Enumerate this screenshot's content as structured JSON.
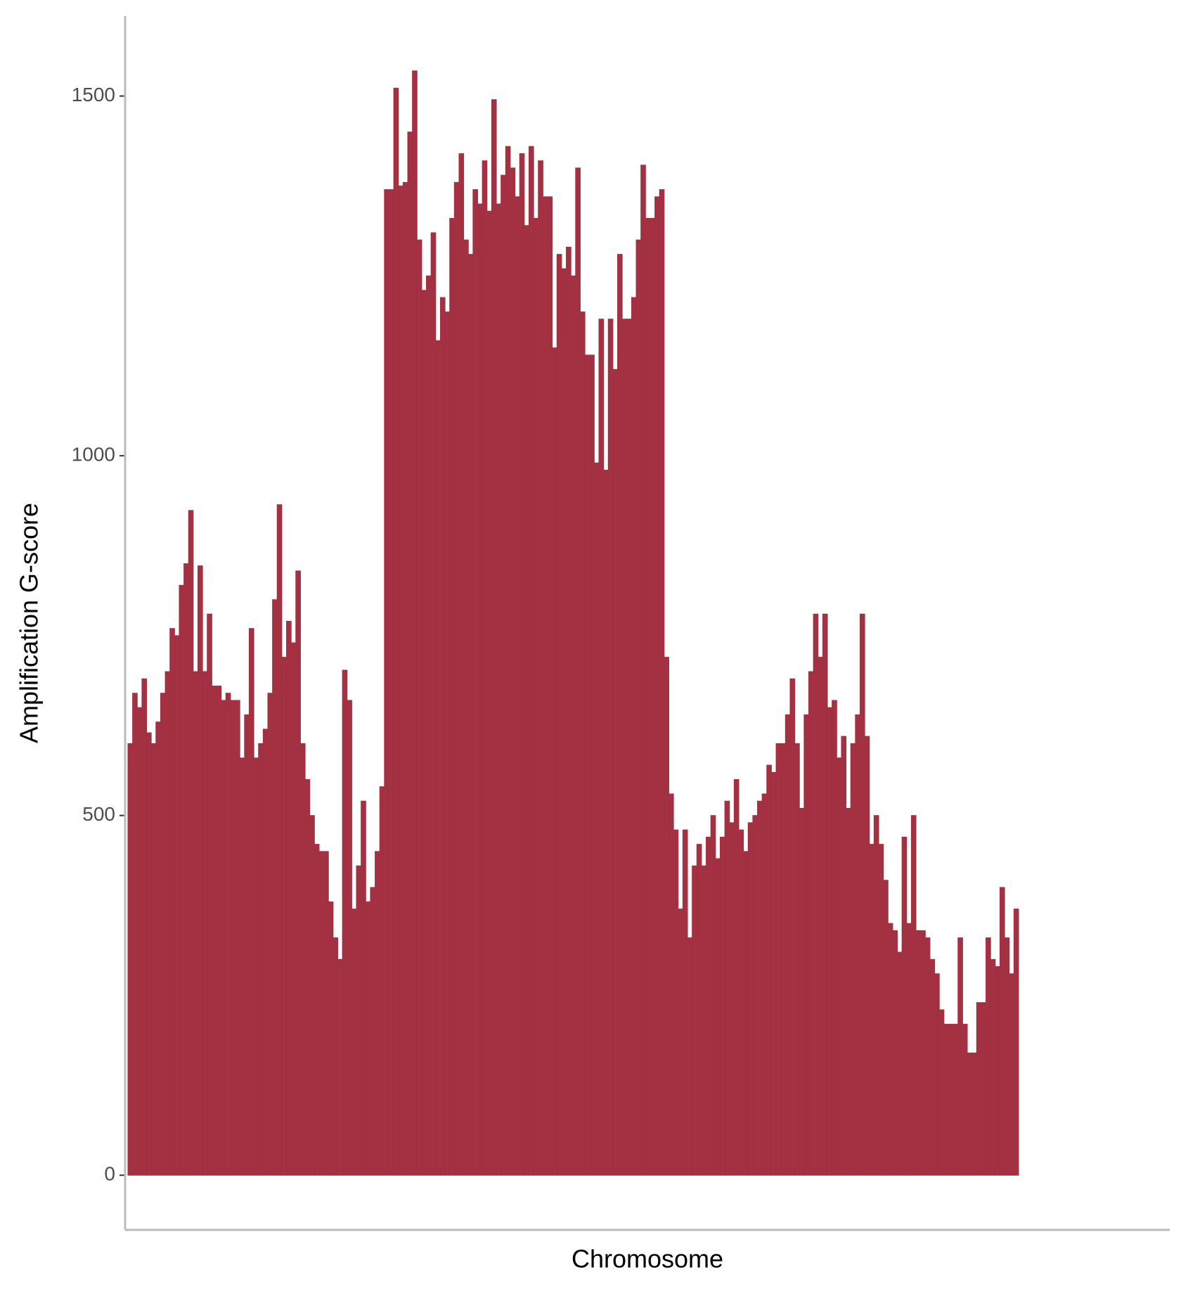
{
  "chart_data": {
    "type": "bar",
    "x_label": "Chromosome",
    "y_label": "Amplification G-score",
    "color": "#a33142",
    "values": [
      600,
      670,
      650,
      690,
      615,
      600,
      630,
      670,
      700,
      760,
      750,
      820,
      850,
      924,
      700,
      847,
      700,
      780,
      680,
      680,
      660,
      670,
      660,
      660,
      580,
      640,
      760,
      580,
      600,
      620,
      670,
      800,
      932,
      720,
      770,
      740,
      840,
      600,
      550,
      500,
      460,
      450,
      450,
      380,
      330,
      300,
      702,
      660,
      370,
      430,
      520,
      380,
      400,
      450,
      540,
      1370,
      1370,
      1511,
      1375,
      1380,
      1450,
      1535,
      1300,
      1230,
      1250,
      1310,
      1160,
      1220,
      1200,
      1330,
      1380,
      1420,
      1300,
      1280,
      1370,
      1350,
      1410,
      1340,
      1495,
      1350,
      1390,
      1430,
      1400,
      1360,
      1420,
      1320,
      1430,
      1330,
      1410,
      1360,
      1360,
      1150,
      1280,
      1260,
      1290,
      1250,
      1400,
      1200,
      1140,
      1140,
      990,
      1190,
      980,
      1190,
      1120,
      1280,
      1190,
      1190,
      1220,
      1300,
      1404,
      1330,
      1330,
      1360,
      1370,
      720,
      530,
      480,
      370,
      480,
      330,
      430,
      460,
      430,
      470,
      500,
      440,
      470,
      520,
      490,
      550,
      480,
      450,
      490,
      500,
      520,
      530,
      570,
      560,
      600,
      600,
      640,
      690,
      600,
      510,
      640,
      700,
      780,
      720,
      780,
      650,
      660,
      580,
      610,
      510,
      600,
      640,
      780,
      610,
      460,
      500,
      460,
      410,
      350,
      340,
      310,
      470,
      350,
      500,
      340,
      340,
      330,
      300,
      280,
      230,
      210,
      210,
      210,
      330,
      210,
      170,
      170,
      240,
      240,
      330,
      300,
      290,
      400,
      330,
      280,
      370
    ],
    "ylim": [
      -76,
      1611
    ],
    "yticks": [
      0,
      500,
      1000,
      1500
    ]
  }
}
